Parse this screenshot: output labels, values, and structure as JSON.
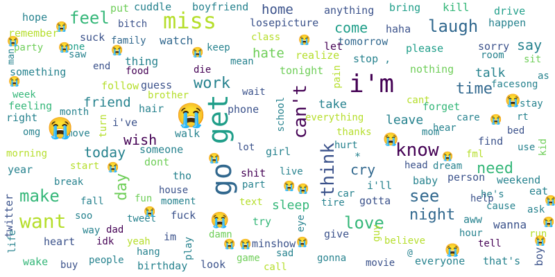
{
  "words": [
    {
      "text": "miss",
      "color": "#b5de2b"
    },
    {
      "text": "i'm",
      "color": "#440154"
    },
    {
      "text": "get",
      "color": "#1f9e89"
    },
    {
      "text": "go",
      "color": "#31688e"
    },
    {
      "text": "want",
      "color": "#b5de2b"
    },
    {
      "text": "can't",
      "color": "#440154"
    },
    {
      "text": "know",
      "color": "#440154"
    },
    {
      "text": "think",
      "color": "#3b528b"
    },
    {
      "text": "love",
      "color": "#35b779"
    },
    {
      "text": "work",
      "color": "#26828e"
    },
    {
      "text": "feel",
      "color": "#35b779"
    },
    {
      "text": "laugh",
      "color": "#31688e"
    },
    {
      "text": "come",
      "color": "#1f9e89"
    },
    {
      "text": "time",
      "color": "#31688e"
    },
    {
      "text": "see",
      "color": "#31688e"
    },
    {
      "text": "make",
      "color": "#35b779"
    },
    {
      "text": "night",
      "color": "#31688e"
    },
    {
      "text": "day",
      "color": "#6ece58"
    },
    {
      "text": "need",
      "color": "#35b779"
    },
    {
      "text": "cry",
      "color": "#31688e"
    },
    {
      "text": "today",
      "color": "#26828e"
    },
    {
      "text": "wish",
      "color": "#440154"
    },
    {
      "text": "say",
      "color": "#26828e"
    },
    {
      "text": "home",
      "color": "#3b528b"
    },
    {
      "text": "hate",
      "color": "#6ece58"
    },
    {
      "text": "friend",
      "color": "#26828e"
    },
    {
      "text": "sleep",
      "color": "#35b779"
    },
    {
      "text": "take",
      "color": "#26828e"
    },
    {
      "text": "leave",
      "color": "#26828e"
    },
    {
      "text": "talk",
      "color": "#26828e"
    },
    {
      "text": "wanna",
      "color": "#3b528b"
    },
    {
      "text": "watch",
      "color": "#31688e"
    },
    {
      "text": "thing",
      "color": "#26828e"
    },
    {
      "text": "hope",
      "color": "#26828e"
    },
    {
      "text": "remember",
      "color": "#b5de2b"
    },
    {
      "text": "suck",
      "color": "#3b528b"
    },
    {
      "text": "party",
      "color": "#6ece58"
    },
    {
      "text": "one",
      "color": "#1f9e89"
    },
    {
      "text": "saw",
      "color": "#26828e"
    },
    {
      "text": "man",
      "color": "#26828e"
    },
    {
      "text": "something",
      "color": "#26828e"
    },
    {
      "text": "put",
      "color": "#6ece58"
    },
    {
      "text": "bitch",
      "color": "#3b528b"
    },
    {
      "text": "cuddle",
      "color": "#26828e"
    },
    {
      "text": "boyfriend",
      "color": "#26828e"
    },
    {
      "text": "family",
      "color": "#31688e"
    },
    {
      "text": "losepicture",
      "color": "#3b528b"
    },
    {
      "text": "class",
      "color": "#b5de2b"
    },
    {
      "text": "anything",
      "color": "#3b528b"
    },
    {
      "text": "bring",
      "color": "#1f9e89"
    },
    {
      "text": "kill",
      "color": "#35b779"
    },
    {
      "text": "drive",
      "color": "#1f9e89"
    },
    {
      "text": "happen",
      "color": "#26828e"
    },
    {
      "text": "haha",
      "color": "#3b528b"
    },
    {
      "text": "tomorrow",
      "color": "#31688e"
    },
    {
      "text": "please",
      "color": "#1f9e89"
    },
    {
      "text": "sorry",
      "color": "#3b528b"
    },
    {
      "text": "room",
      "color": "#26828e"
    },
    {
      "text": "sit",
      "color": "#6ece58"
    },
    {
      "text": "keep",
      "color": "#26828e"
    },
    {
      "text": "realize",
      "color": "#b5de2b"
    },
    {
      "text": "stop ,",
      "color": "#26828e"
    },
    {
      "text": "nothing",
      "color": "#6ece58"
    },
    {
      "text": "end",
      "color": "#3b528b"
    },
    {
      "text": "food",
      "color": "#440154"
    },
    {
      "text": "die",
      "color": "#440154"
    },
    {
      "text": "mean",
      "color": "#26828e"
    },
    {
      "text": "tonight",
      "color": "#6ece58"
    },
    {
      "text": "let",
      "color": "#440154"
    },
    {
      "text": "as",
      "color": "#26828e"
    },
    {
      "text": "facesong",
      "color": "#26828e"
    },
    {
      "text": "stay",
      "color": "#26828e"
    },
    {
      "text": "rt",
      "color": "#26828e"
    },
    {
      "text": "week",
      "color": "#35b779"
    },
    {
      "text": "follow",
      "color": "#b5de2b"
    },
    {
      "text": "guess",
      "color": "#3b528b"
    },
    {
      "text": "brother",
      "color": "#b5de2b"
    },
    {
      "text": "wait",
      "color": "#3b528b"
    },
    {
      "text": "pain",
      "color": "#b5de2b"
    },
    {
      "text": "cant",
      "color": "#b5de2b"
    },
    {
      "text": "forget",
      "color": "#35b779"
    },
    {
      "text": "feeling",
      "color": "#35b779"
    },
    {
      "text": "month",
      "color": "#26828e"
    },
    {
      "text": "hair",
      "color": "#26828e"
    },
    {
      "text": "phone",
      "color": "#3b528b"
    },
    {
      "text": "school",
      "color": "#26828e"
    },
    {
      "text": "care",
      "color": "#26828e"
    },
    {
      "text": "hear",
      "color": "#26828e"
    },
    {
      "text": "right",
      "color": "#26828e"
    },
    {
      "text": "i've",
      "color": "#3b528b"
    },
    {
      "text": "everything",
      "color": "#b5de2b"
    },
    {
      "text": "mom",
      "color": "#26828e"
    },
    {
      "text": "bed",
      "color": "#3b528b"
    },
    {
      "text": "omg",
      "color": "#26828e"
    },
    {
      "text": "move",
      "color": "#26828e"
    },
    {
      "text": "turn",
      "color": "#b5de2b"
    },
    {
      "text": "thanks",
      "color": "#b5de2b"
    },
    {
      "text": "find",
      "color": "#3b528b"
    },
    {
      "text": "use",
      "color": "#26828e"
    },
    {
      "text": "kid",
      "color": "#6ece58"
    },
    {
      "text": "morning",
      "color": "#b5de2b"
    },
    {
      "text": "someone",
      "color": "#26828e"
    },
    {
      "text": "walk",
      "color": "#26828e"
    },
    {
      "text": "lot",
      "color": "#3b528b"
    },
    {
      "text": "girl",
      "color": "#26828e"
    },
    {
      "text": "hurt",
      "color": "#26828e"
    },
    {
      "text": "fml",
      "color": "#b5de2b"
    },
    {
      "text": "dont",
      "color": "#6ece58"
    },
    {
      "text": "head",
      "color": "#3b528b"
    },
    {
      "text": "dream",
      "color": "#26828e"
    },
    {
      "text": "year",
      "color": "#26828e"
    },
    {
      "text": "start",
      "color": "#b5de2b"
    },
    {
      "text": "tho",
      "color": "#26828e"
    },
    {
      "text": "shit",
      "color": "#440154"
    },
    {
      "text": "live",
      "color": "#26828e"
    },
    {
      "text": "i'll",
      "color": "#26828e"
    },
    {
      "text": "baby",
      "color": "#26828e"
    },
    {
      "text": "person",
      "color": "#3b528b"
    },
    {
      "text": "weekend",
      "color": "#26828e"
    },
    {
      "text": "break",
      "color": "#26828e"
    },
    {
      "text": "house",
      "color": "#3b528b"
    },
    {
      "text": "part",
      "color": "#26828e"
    },
    {
      "text": "car",
      "color": "#26828e"
    },
    {
      "text": "he's",
      "color": "#26828e"
    },
    {
      "text": "eat",
      "color": "#26828e"
    },
    {
      "text": "fall",
      "color": "#26828e"
    },
    {
      "text": "fun",
      "color": "#6ece58"
    },
    {
      "text": "moment",
      "color": "#26828e"
    },
    {
      "text": "text",
      "color": "#b5de2b"
    },
    {
      "text": "tire",
      "color": "#26828e"
    },
    {
      "text": "gotta",
      "color": "#3b528b"
    },
    {
      "text": "help",
      "color": "#3b528b"
    },
    {
      "text": "cause",
      "color": "#26828e"
    },
    {
      "text": "ask",
      "color": "#26828e"
    },
    {
      "text": "twitter",
      "color": "#3b528b"
    },
    {
      "text": "soo",
      "color": "#26828e"
    },
    {
      "text": "tweet",
      "color": "#26828e"
    },
    {
      "text": "fuck",
      "color": "#3b528b"
    },
    {
      "text": "try",
      "color": "#35b779"
    },
    {
      "text": "eye",
      "color": "#26828e"
    },
    {
      "text": "aww",
      "color": "#26828e"
    },
    {
      "text": "way",
      "color": "#26828e"
    },
    {
      "text": "dad",
      "color": "#440154"
    },
    {
      "text": "im",
      "color": "#3b528b"
    },
    {
      "text": "damn",
      "color": "#6ece58"
    },
    {
      "text": "give",
      "color": "#3b528b"
    },
    {
      "text": "hour",
      "color": "#26828e"
    },
    {
      "text": "run",
      "color": "#b5de2b"
    },
    {
      "text": "heart",
      "color": "#3b528b"
    },
    {
      "text": "idk",
      "color": "#440154"
    },
    {
      "text": "yeah",
      "color": "#b5de2b"
    },
    {
      "text": "minshow",
      "color": "#3b528b"
    },
    {
      "text": "guy",
      "color": "#b5de2b"
    },
    {
      "text": "believe",
      "color": "#b5de2b"
    },
    {
      "text": "tell",
      "color": "#440154"
    },
    {
      "text": "life",
      "color": "#26828e"
    },
    {
      "text": "hang",
      "color": "#26828e"
    },
    {
      "text": "play",
      "color": "#26828e"
    },
    {
      "text": "game",
      "color": "#6ece58"
    },
    {
      "text": "sad",
      "color": "#26828e"
    },
    {
      "text": "gonna",
      "color": "#26828e"
    },
    {
      "text": "@",
      "color": "#26828e"
    },
    {
      "text": "boy",
      "color": "#3b528b"
    },
    {
      "text": "wake",
      "color": "#35b779"
    },
    {
      "text": "buy",
      "color": "#3b528b"
    },
    {
      "text": "people",
      "color": "#26828e"
    },
    {
      "text": "birthday",
      "color": "#26828e"
    },
    {
      "text": "look",
      "color": "#3b528b"
    },
    {
      "text": "call",
      "color": "#b5de2b"
    },
    {
      "text": "movie",
      "color": "#3b528b"
    },
    {
      "text": "everyone",
      "color": "#26828e"
    },
    {
      "text": "that's",
      "color": "#26828e"
    },
    {
      "text": "*",
      "color": "#26828e"
    }
  ],
  "glyphs": [
    {
      "text": "😭",
      "color": "#35b779"
    },
    {
      "text": "😭",
      "color": "#6ece58"
    },
    {
      "text": "😭",
      "color": "#1f9e89"
    },
    {
      "text": "😭",
      "color": "#3b528b"
    },
    {
      "text": "😭",
      "color": "#26828e"
    },
    {
      "text": "😭",
      "color": "#6ece58"
    },
    {
      "text": "😭",
      "color": "#1f9e89"
    },
    {
      "text": "😭",
      "color": "#6ece58"
    },
    {
      "text": "😭",
      "color": "#26828e"
    },
    {
      "text": "😭",
      "color": "#b5de2b"
    },
    {
      "text": "😭",
      "color": "#3b528b"
    },
    {
      "text": "😭",
      "color": "#26828e"
    },
    {
      "text": "😭",
      "color": "#26828e"
    },
    {
      "text": "😭",
      "color": "#b5de2b"
    },
    {
      "text": "😭",
      "color": "#3b528b"
    },
    {
      "text": "😭",
      "color": "#b5de2b"
    },
    {
      "text": "😭",
      "color": "#26828e"
    },
    {
      "text": "😭",
      "color": "#26828e"
    },
    {
      "text": "😭",
      "color": "#b5de2b"
    },
    {
      "text": "😭",
      "color": "#b5de2b"
    },
    {
      "text": "😭",
      "color": "#26828e"
    },
    {
      "text": "😭",
      "color": "#6ece58"
    },
    {
      "text": "😭",
      "color": "#1f9e89"
    },
    {
      "text": "😭",
      "color": "#b5de2b"
    },
    {
      "text": "😭",
      "color": "#26828e"
    },
    {
      "text": "😭",
      "color": "#26828e"
    }
  ]
}
